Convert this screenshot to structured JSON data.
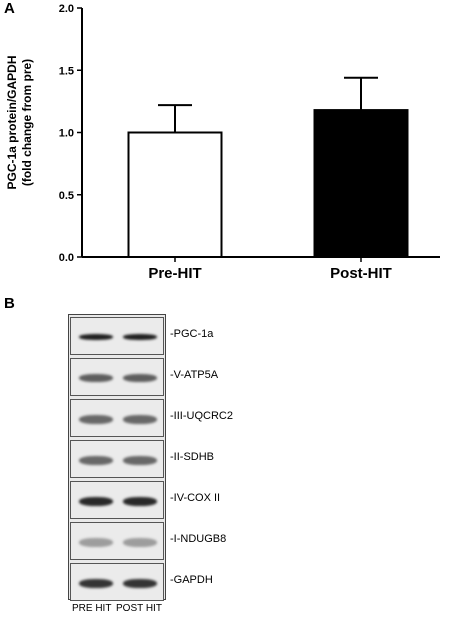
{
  "panel_a_label": "A",
  "panel_b_label": "B",
  "chart_data": {
    "type": "bar",
    "categories": [
      "Pre-HIT",
      "Post-HIT"
    ],
    "values": [
      1.0,
      1.18
    ],
    "error": [
      0.22,
      0.26
    ],
    "bar_colors": [
      "#ffffff",
      "#000000"
    ],
    "ylabel": "PGC-1a protein/GAPDH\n(fold change from pre)",
    "ylabel_lines": [
      "PGC-1a protein/GAPDH",
      "(fold change from pre)"
    ],
    "ylim": [
      0,
      2.0
    ],
    "yticks": [
      "0.0",
      "0.5",
      "1.0",
      "1.5",
      "2.0"
    ],
    "ytick_values": [
      0,
      0.5,
      1.0,
      1.5,
      2.0
    ],
    "grid": false,
    "legend": "none"
  },
  "blot": {
    "bands": [
      {
        "label": "-PGC-1a",
        "intensity": 0.95,
        "thickness": 0.35
      },
      {
        "label": "-V-ATP5A",
        "intensity": 0.65,
        "thickness": 0.45
      },
      {
        "label": "-III-UQCRC2",
        "intensity": 0.6,
        "thickness": 0.55
      },
      {
        "label": "-II-SDHB",
        "intensity": 0.6,
        "thickness": 0.5
      },
      {
        "label": "-IV-COX II",
        "intensity": 0.9,
        "thickness": 0.55
      },
      {
        "label": "-I-NDUGB8",
        "intensity": 0.35,
        "thickness": 0.5
      },
      {
        "label": "-GAPDH",
        "intensity": 0.85,
        "thickness": 0.55
      }
    ],
    "lanes": [
      "PRE HIT",
      "POST HIT"
    ]
  }
}
